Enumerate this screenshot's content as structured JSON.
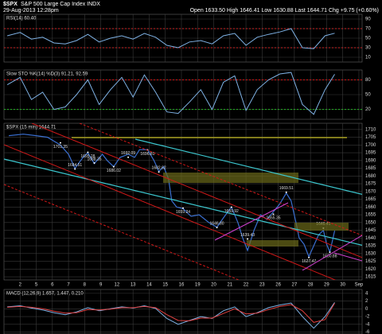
{
  "header": {
    "symbol": "$SPX",
    "name": "S&P 500 Large Cap Index INDX",
    "date": "29-Aug-2013 12:28pm",
    "quote": "Open 1633.50  High 1646.41  Low 1630.88  Last 1644.71  Chg +9.75 (+0.60%)"
  },
  "chart_data": [
    {
      "type": "line",
      "title": "RSI(14) 60.40",
      "color": "#7fb2e5",
      "ylim": [
        0,
        100
      ],
      "yticks": [
        90,
        70,
        50,
        30,
        10
      ],
      "grid": true,
      "reference_lines": [
        {
          "value": 70,
          "color": "#cc2222"
        },
        {
          "value": 30,
          "color": "#cc2222"
        }
      ],
      "x": [
        -0.8,
        0,
        0.7,
        1.4,
        2.1,
        2.8,
        3.5,
        4.2,
        4.9,
        5.6,
        6.3,
        7,
        7.7,
        8.4,
        9.1,
        9.8,
        10.5,
        11.2,
        11.9,
        12.6,
        13.3,
        14,
        14.7,
        15.4,
        16.1,
        16.8,
        17.5,
        18.2,
        18.9,
        19.5
      ],
      "values": [
        55,
        62,
        48,
        52,
        40,
        38,
        45,
        58,
        42,
        50,
        55,
        48,
        60,
        52,
        35,
        30,
        42,
        45,
        38,
        55,
        60,
        35,
        52,
        58,
        63,
        70,
        30,
        28,
        55,
        60.4
      ]
    },
    {
      "type": "line",
      "title": "Slow STO %K(14) %D(3) 91.21, 92.59",
      "color": "#7fb2e5",
      "ylim": [
        0,
        100
      ],
      "yticks": [
        80,
        50,
        20
      ],
      "grid": true,
      "reference_lines": [
        {
          "value": 80,
          "color": "#dd1111"
        },
        {
          "value": 20,
          "color": "#22bb22"
        }
      ],
      "x": [
        -0.8,
        0,
        0.7,
        1.4,
        2.1,
        2.8,
        3.5,
        4.2,
        4.9,
        5.6,
        6.3,
        7,
        7.7,
        8.4,
        9.1,
        9.8,
        10.5,
        11.2,
        11.9,
        12.6,
        13.3,
        14,
        14.7,
        15.4,
        16.1,
        16.8,
        17.5,
        18.2,
        18.9,
        19.5
      ],
      "values": [
        70,
        85,
        40,
        55,
        20,
        25,
        50,
        80,
        30,
        60,
        85,
        45,
        90,
        55,
        15,
        12,
        35,
        60,
        20,
        75,
        88,
        18,
        60,
        80,
        92,
        95,
        30,
        10,
        60,
        91.21
      ]
    },
    {
      "type": "line",
      "title": "$SPX (15 min) 1644.71",
      "color": "#3a6fd0",
      "ylim": [
        1613,
        1714
      ],
      "grid": true,
      "yticks": [
        1710,
        1705,
        1700,
        1695,
        1690,
        1685,
        1680,
        1675,
        1670,
        1665,
        1660,
        1655,
        1650,
        1645,
        1640,
        1635,
        1630,
        1625,
        1620,
        1615
      ],
      "xlim": [
        -1,
        21.2
      ],
      "xticks": [
        {
          "value": 0,
          "label": "2"
        },
        {
          "value": 1,
          "label": "5"
        },
        {
          "value": 2,
          "label": "6"
        },
        {
          "value": 3,
          "label": "7"
        },
        {
          "value": 4,
          "label": "8"
        },
        {
          "value": 5,
          "label": "9"
        },
        {
          "value": 6,
          "label": "12"
        },
        {
          "value": 7,
          "label": "13"
        },
        {
          "value": 8,
          "label": "14"
        },
        {
          "value": 9,
          "label": "15"
        },
        {
          "value": 10,
          "label": "16"
        },
        {
          "value": 11,
          "label": "19"
        },
        {
          "value": 12,
          "label": "20"
        },
        {
          "value": 13,
          "label": "21"
        },
        {
          "value": 14,
          "label": "22"
        },
        {
          "value": 15,
          "label": "23"
        },
        {
          "value": 16,
          "label": "26"
        },
        {
          "value": 17,
          "label": "27"
        },
        {
          "value": 18,
          "label": "28"
        },
        {
          "value": 19,
          "label": "29"
        },
        {
          "value": 20,
          "label": "30"
        },
        {
          "value": 21,
          "label": "Sep"
        }
      ],
      "x": [
        -0.7,
        0.2,
        1,
        1.7,
        2.5,
        3,
        3.4,
        3.9,
        4.2,
        4.6,
        5.1,
        5.4,
        5.8,
        6.2,
        6.7,
        7.1,
        7.4,
        7.9,
        8.3,
        8.6,
        8.9,
        9.2,
        9.4,
        9.7,
        10.1,
        10.6,
        11.1,
        11.7,
        12.2,
        12.6,
        13.1,
        13.5,
        13.8,
        14.1,
        14.5,
        14.9,
        15.3,
        15.7,
        16.1,
        16.5,
        16.8,
        17.1,
        17.3,
        17.6,
        17.9,
        18.2,
        18.5,
        18.8,
        19,
        19.2,
        19.4,
        19.5
      ],
      "values": [
        1706,
        1707,
        1706,
        1705,
        1700,
        1694,
        1685,
        1692,
        1695,
        1688,
        1694,
        1690,
        1686,
        1692,
        1694,
        1692,
        1697,
        1697,
        1690,
        1683,
        1686,
        1678,
        1664,
        1660,
        1659,
        1654,
        1655,
        1650,
        1647,
        1653,
        1660,
        1650,
        1640,
        1632,
        1645,
        1655,
        1652,
        1657,
        1662,
        1669,
        1664,
        1650,
        1640,
        1636,
        1628,
        1635,
        1642,
        1645,
        1636,
        1631,
        1640,
        1644.71
      ],
      "annotations": [
        {
          "x": 2.5,
          "value": 1701.35,
          "label": "1701.35"
        },
        {
          "x": 3.4,
          "value": 1684.51,
          "label": "1684.51"
        },
        {
          "x": 4.2,
          "value": 1695.28,
          "label": "1695.28"
        },
        {
          "x": 4.6,
          "value": 1688.35,
          "label": "1688.35"
        },
        {
          "x": 5.8,
          "value": 1686.02,
          "label": "1686.02"
        },
        {
          "x": 6.7,
          "value": 1692.09,
          "label": "1692.09"
        },
        {
          "x": 7.9,
          "value": 1696.81,
          "label": "1696.81"
        },
        {
          "x": 8.6,
          "value": 1682.62,
          "label": "1682.62"
        },
        {
          "x": 10.1,
          "value": 1659.24,
          "label": "1659.24"
        },
        {
          "x": 12.2,
          "value": 1646.8,
          "label": "1646.80"
        },
        {
          "x": 13.1,
          "value": 1659.92,
          "label": "1659.92"
        },
        {
          "x": 14.1,
          "value": 1639.43,
          "label": "1639.43"
        },
        {
          "x": 15.7,
          "value": 1655.35,
          "label": "1655.35"
        },
        {
          "x": 16.5,
          "value": 1669.51,
          "label": "1669.51"
        },
        {
          "x": 17.9,
          "value": 1627.47,
          "label": "1627.47"
        },
        {
          "x": 18.8,
          "value": 1646.41,
          "label": "1646.41"
        },
        {
          "x": 19.2,
          "value": 1630.88,
          "label": "1630.88"
        }
      ]
    },
    {
      "type": "line",
      "title": "MACD (12,26,9) 1.657, 1.447, 0.210",
      "ylim": [
        -6.5,
        5
      ],
      "yticks": [
        4,
        2,
        0,
        -2,
        -4,
        -6
      ],
      "grid": true,
      "x": [
        -0.8,
        0,
        0.7,
        1.4,
        2.1,
        2.8,
        3.5,
        4.2,
        4.9,
        5.6,
        6.3,
        7,
        7.7,
        8.4,
        9.1,
        9.8,
        10.5,
        11.2,
        11.9,
        12.6,
        13.3,
        14,
        14.7,
        15.4,
        16.1,
        16.8,
        17.5,
        18.2,
        18.9,
        19.5
      ],
      "series": [
        {
          "name": "MACD",
          "color": "#7fb2e5",
          "values": [
            0.5,
            0.8,
            0.2,
            -0.3,
            -1,
            -1.5,
            -0.8,
            0.3,
            -0.5,
            0,
            0.5,
            0.2,
            0.8,
            0.1,
            -2.5,
            -4,
            -3,
            -2,
            -2.5,
            -0.5,
            0.5,
            -2,
            -1,
            0.3,
            1,
            1.5,
            -2,
            -5,
            -2,
            1.657
          ]
        },
        {
          "name": "Signal",
          "color": "#e04040",
          "values": [
            0.4,
            0.6,
            0.4,
            0,
            -0.6,
            -1.1,
            -1,
            -0.2,
            -0.3,
            -0.1,
            0.3,
            0.3,
            0.6,
            0.3,
            -1.5,
            -3,
            -3.1,
            -2.4,
            -2.4,
            -1.2,
            0,
            -1.3,
            -1.1,
            -0.2,
            0.6,
            1.1,
            -0.5,
            -3.5,
            -2.8,
            1.447
          ]
        }
      ]
    }
  ]
}
